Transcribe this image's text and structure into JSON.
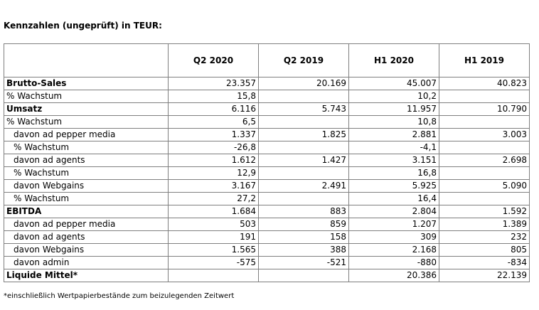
{
  "title": "Kennzahlen (ungeprüft) in TEUR:",
  "table": {
    "headers": [
      "",
      "Q2 2020",
      "Q2 2019",
      "H1 2020",
      "H1 2019"
    ],
    "rows": [
      {
        "label": "Brutto-Sales",
        "bold": true,
        "indent": false,
        "values": [
          "23.357",
          "20.169",
          "45.007",
          "40.823"
        ]
      },
      {
        "label": "% Wachstum",
        "bold": false,
        "indent": false,
        "values": [
          "15,8",
          "",
          "10,2",
          ""
        ]
      },
      {
        "label": "Umsatz",
        "bold": true,
        "indent": false,
        "values": [
          "6.116",
          "5.743",
          "11.957",
          "10.790"
        ]
      },
      {
        "label": "% Wachstum",
        "bold": false,
        "indent": false,
        "values": [
          "6,5",
          "",
          "10,8",
          ""
        ]
      },
      {
        "label": "davon ad pepper media",
        "bold": false,
        "indent": true,
        "values": [
          "1.337",
          "1.825",
          "2.881",
          "3.003"
        ]
      },
      {
        "label": "% Wachstum",
        "bold": false,
        "indent": true,
        "values": [
          "-26,8",
          "",
          "-4,1",
          ""
        ]
      },
      {
        "label": "davon ad agents",
        "bold": false,
        "indent": true,
        "values": [
          "1.612",
          "1.427",
          "3.151",
          "2.698"
        ]
      },
      {
        "label": "% Wachstum",
        "bold": false,
        "indent": true,
        "values": [
          "12,9",
          "",
          "16,8",
          ""
        ]
      },
      {
        "label": "davon Webgains",
        "bold": false,
        "indent": true,
        "values": [
          "3.167",
          "2.491",
          "5.925",
          "5.090"
        ]
      },
      {
        "label": "% Wachstum",
        "bold": false,
        "indent": true,
        "values": [
          "27,2",
          "",
          "16,4",
          ""
        ]
      },
      {
        "label": "EBITDA",
        "bold": true,
        "indent": false,
        "values": [
          "1.684",
          "883",
          "2.804",
          "1.592"
        ]
      },
      {
        "label": "davon ad pepper media",
        "bold": false,
        "indent": true,
        "values": [
          "503",
          "859",
          "1.207",
          "1.389"
        ]
      },
      {
        "label": "davon ad agents",
        "bold": false,
        "indent": true,
        "values": [
          "191",
          "158",
          "309",
          "232"
        ]
      },
      {
        "label": "davon Webgains",
        "bold": false,
        "indent": true,
        "values": [
          "1.565",
          "388",
          "2.168",
          "805"
        ]
      },
      {
        "label": "davon admin",
        "bold": false,
        "indent": true,
        "values": [
          "-575",
          "-521",
          "-880",
          "-834"
        ]
      },
      {
        "label": "Liquide Mittel*",
        "bold": true,
        "indent": false,
        "values": [
          "",
          "",
          "20.386",
          "22.139"
        ]
      }
    ]
  },
  "footnote": "*einschließlich Wertpapierbestände zum beizulegenden Zeitwert"
}
